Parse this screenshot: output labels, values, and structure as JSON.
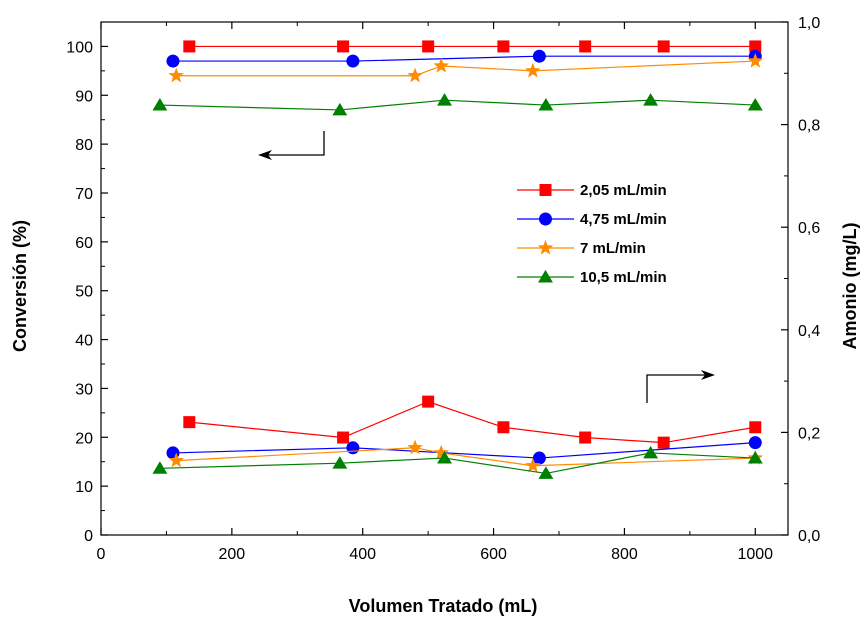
{
  "chart_data": {
    "type": "line",
    "xlabel": "Volumen Tratado (mL)",
    "ylabel_left": "Conversión (%)",
    "ylabel_right": "Amonio (mg/L)",
    "xlim": [
      0,
      1050
    ],
    "ylim_left": [
      0,
      105
    ],
    "ylim_right": [
      0,
      1.0
    ],
    "x_ticks": [
      0,
      200,
      400,
      600,
      800,
      1000
    ],
    "x_tick_labels": [
      "0",
      "200",
      "400",
      "600",
      "800",
      "1000"
    ],
    "y_left_ticks": [
      0,
      10,
      20,
      30,
      40,
      50,
      60,
      70,
      80,
      90,
      100
    ],
    "y_left_tick_labels": [
      "0",
      "10",
      "20",
      "30",
      "40",
      "50",
      "60",
      "70",
      "80",
      "90",
      "100"
    ],
    "y_right_ticks": [
      0,
      0.2,
      0.4,
      0.6,
      0.8,
      1.0
    ],
    "y_right_tick_labels": [
      "0,0",
      "0,2",
      "0,4",
      "0,6",
      "0,8",
      "1,0"
    ],
    "grid": false,
    "legend_position": "center-right",
    "series": [
      {
        "name": "2,05 mL/min",
        "color": "#ff0000",
        "marker": "square",
        "conversion": {
          "x": [
            135,
            370,
            500,
            615,
            740,
            860,
            1000
          ],
          "y": [
            100,
            100,
            100,
            100,
            100,
            100,
            100
          ]
        },
        "ammonia": {
          "x": [
            135,
            370,
            500,
            615,
            740,
            860,
            1000
          ],
          "y": [
            22,
            19,
            26,
            21,
            19,
            18,
            21
          ]
        }
      },
      {
        "name": "4,75 mL/min",
        "color": "#0000ff",
        "marker": "circle",
        "conversion": {
          "x": [
            110,
            385,
            670,
            1000
          ],
          "y": [
            97,
            97,
            98,
            98
          ]
        },
        "ammonia": {
          "x": [
            110,
            385,
            670,
            1000
          ],
          "y": [
            16,
            17,
            15,
            18
          ]
        }
      },
      {
        "name": "7 mL/min",
        "color": "#ff8c00",
        "marker": "star",
        "conversion": {
          "x": [
            115,
            480,
            520,
            660,
            1000
          ],
          "y": [
            94,
            94,
            96,
            95,
            97
          ]
        },
        "ammonia": {
          "x": [
            115,
            480,
            520,
            660,
            1000
          ],
          "y": [
            14.5,
            17,
            16,
            13.5,
            15
          ]
        }
      },
      {
        "name": "10,5 mL/min",
        "color": "#008000",
        "marker": "triangle",
        "conversion": {
          "x": [
            90,
            365,
            525,
            680,
            840,
            1000
          ],
          "y": [
            88,
            87,
            89,
            88,
            89,
            88
          ]
        },
        "ammonia": {
          "x": [
            90,
            365,
            525,
            680,
            840,
            1000
          ],
          "y": [
            13,
            14,
            15,
            12,
            16,
            15
          ]
        }
      }
    ]
  }
}
